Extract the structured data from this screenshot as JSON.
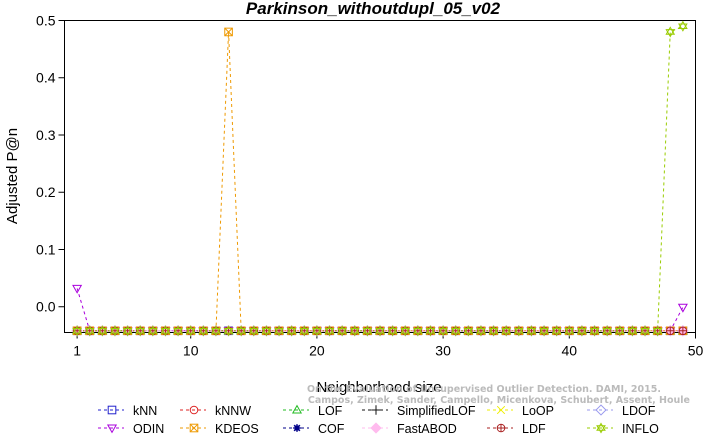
{
  "chart_data": {
    "type": "line",
    "title": "Parkinson_withoutdupl_05_v02",
    "xlabel": "Neighborhood size",
    "ylabel": "Adjusted P@n",
    "xlim": [
      0,
      50
    ],
    "ylim": [
      -0.045,
      0.5
    ],
    "xticks": [
      "1",
      "10",
      "20",
      "30",
      "40",
      "50"
    ],
    "yticks": [
      "0.0",
      "0.1",
      "0.2",
      "0.3",
      "0.4",
      "0.5"
    ],
    "x": [
      1,
      2,
      3,
      4,
      5,
      6,
      7,
      8,
      9,
      10,
      11,
      12,
      13,
      14,
      15,
      16,
      17,
      18,
      19,
      20,
      21,
      22,
      23,
      24,
      25,
      26,
      27,
      28,
      29,
      30,
      31,
      32,
      33,
      34,
      35,
      36,
      37,
      38,
      39,
      40,
      41,
      42,
      43,
      44,
      45,
      46,
      47,
      48,
      49
    ],
    "series": [
      {
        "name": "kNN",
        "color": "#2222cc",
        "marker": "square",
        "values": [
          -0.042,
          -0.042,
          -0.042,
          -0.042,
          -0.042,
          -0.042,
          -0.042,
          -0.042,
          -0.042,
          -0.042,
          -0.042,
          -0.042,
          -0.042,
          -0.042,
          -0.042,
          -0.042,
          -0.042,
          -0.042,
          -0.042,
          -0.042,
          -0.042,
          -0.042,
          -0.042,
          -0.042,
          -0.042,
          -0.042,
          -0.042,
          -0.042,
          -0.042,
          -0.042,
          -0.042,
          -0.042,
          -0.042,
          -0.042,
          -0.042,
          -0.042,
          -0.042,
          -0.042,
          -0.042,
          -0.042,
          -0.042,
          -0.042,
          -0.042,
          -0.042,
          -0.042,
          -0.042,
          -0.042,
          -0.042,
          -0.042
        ]
      },
      {
        "name": "kNNW",
        "color": "#dd2222",
        "marker": "circle",
        "values": [
          -0.042,
          -0.042,
          -0.042,
          -0.042,
          -0.042,
          -0.042,
          -0.042,
          -0.042,
          -0.042,
          -0.042,
          -0.042,
          -0.042,
          -0.042,
          -0.042,
          -0.042,
          -0.042,
          -0.042,
          -0.042,
          -0.042,
          -0.042,
          -0.042,
          -0.042,
          -0.042,
          -0.042,
          -0.042,
          -0.042,
          -0.042,
          -0.042,
          -0.042,
          -0.042,
          -0.042,
          -0.042,
          -0.042,
          -0.042,
          -0.042,
          -0.042,
          -0.042,
          -0.042,
          -0.042,
          -0.042,
          -0.042,
          -0.042,
          -0.042,
          -0.042,
          -0.042,
          -0.042,
          -0.042,
          -0.042,
          -0.042
        ]
      },
      {
        "name": "LOF",
        "color": "#22bb22",
        "marker": "triangle",
        "values": [
          -0.042,
          -0.042,
          -0.042,
          -0.042,
          -0.042,
          -0.042,
          -0.042,
          -0.042,
          -0.042,
          -0.042,
          -0.042,
          -0.042,
          -0.042,
          -0.042,
          -0.042,
          -0.042,
          -0.042,
          -0.042,
          -0.042,
          -0.042,
          -0.042,
          -0.042,
          -0.042,
          -0.042,
          -0.042,
          -0.042,
          -0.042,
          -0.042,
          -0.042,
          -0.042,
          -0.042,
          -0.042,
          -0.042,
          -0.042,
          -0.042,
          -0.042,
          -0.042,
          -0.042,
          -0.042,
          -0.042,
          -0.042,
          -0.042,
          -0.042,
          -0.042,
          -0.042,
          -0.042,
          -0.042,
          -0.042,
          -0.042
        ]
      },
      {
        "name": "SimplifiedLOF",
        "color": "#111111",
        "marker": "plus",
        "values": [
          -0.042,
          -0.042,
          -0.042,
          -0.042,
          -0.042,
          -0.042,
          -0.042,
          -0.042,
          -0.042,
          -0.042,
          -0.042,
          -0.042,
          -0.042,
          -0.042,
          -0.042,
          -0.042,
          -0.042,
          -0.042,
          -0.042,
          -0.042,
          -0.042,
          -0.042,
          -0.042,
          -0.042,
          -0.042,
          -0.042,
          -0.042,
          -0.042,
          -0.042,
          -0.042,
          -0.042,
          -0.042,
          -0.042,
          -0.042,
          -0.042,
          -0.042,
          -0.042,
          -0.042,
          -0.042,
          -0.042,
          -0.042,
          -0.042,
          -0.042,
          -0.042,
          -0.042,
          -0.042,
          -0.042,
          -0.042,
          -0.042
        ]
      },
      {
        "name": "LoOP",
        "color": "#eeee00",
        "marker": "x",
        "values": [
          -0.042,
          -0.042,
          -0.042,
          -0.042,
          -0.042,
          -0.042,
          -0.042,
          -0.042,
          -0.042,
          -0.042,
          -0.042,
          -0.042,
          -0.042,
          -0.042,
          -0.042,
          -0.042,
          -0.042,
          -0.042,
          -0.042,
          -0.042,
          -0.042,
          -0.042,
          -0.042,
          -0.042,
          -0.042,
          -0.042,
          -0.042,
          -0.042,
          -0.042,
          -0.042,
          -0.042,
          -0.042,
          -0.042,
          -0.042,
          -0.042,
          -0.042,
          -0.042,
          -0.042,
          -0.042,
          -0.042,
          -0.042,
          -0.042,
          -0.042,
          -0.042,
          -0.042,
          -0.042,
          -0.042,
          -0.042,
          -0.042
        ]
      },
      {
        "name": "LDOF",
        "color": "#9999ee",
        "marker": "diamond",
        "values": [
          -0.042,
          -0.042,
          -0.042,
          -0.042,
          -0.042,
          -0.042,
          -0.042,
          -0.042,
          -0.042,
          -0.042,
          -0.042,
          -0.042,
          -0.042,
          -0.042,
          -0.042,
          -0.042,
          -0.042,
          -0.042,
          -0.042,
          -0.042,
          -0.042,
          -0.042,
          -0.042,
          -0.042,
          -0.042,
          -0.042,
          -0.042,
          -0.042,
          -0.042,
          -0.042,
          -0.042,
          -0.042,
          -0.042,
          -0.042,
          -0.042,
          -0.042,
          -0.042,
          -0.042,
          -0.042,
          -0.042,
          -0.042,
          -0.042,
          -0.042,
          -0.042,
          -0.042,
          -0.042,
          -0.042,
          -0.042,
          -0.042
        ]
      },
      {
        "name": "ODIN",
        "color": "#aa00dd",
        "marker": "triangle-down",
        "values": [
          0.032,
          -0.042,
          -0.042,
          -0.042,
          -0.042,
          -0.042,
          -0.042,
          -0.042,
          -0.042,
          -0.042,
          -0.042,
          -0.042,
          -0.042,
          -0.042,
          -0.042,
          -0.042,
          -0.042,
          -0.042,
          -0.042,
          -0.042,
          -0.042,
          -0.042,
          -0.042,
          -0.042,
          -0.042,
          -0.042,
          -0.042,
          -0.042,
          -0.042,
          -0.042,
          -0.042,
          -0.042,
          -0.042,
          -0.042,
          -0.042,
          -0.042,
          -0.042,
          -0.042,
          -0.042,
          -0.042,
          -0.042,
          -0.042,
          -0.042,
          -0.042,
          -0.042,
          -0.042,
          -0.042,
          -0.042,
          -0.001
        ]
      },
      {
        "name": "KDEOS",
        "color": "#ee9900",
        "marker": "square-x",
        "values": [
          -0.042,
          -0.042,
          -0.042,
          -0.042,
          -0.042,
          -0.042,
          -0.042,
          -0.042,
          -0.042,
          -0.042,
          -0.042,
          -0.042,
          0.48,
          -0.042,
          -0.042,
          -0.042,
          -0.042,
          -0.042,
          -0.042,
          -0.042,
          -0.042,
          -0.042,
          -0.042,
          -0.042,
          -0.042,
          -0.042,
          -0.042,
          -0.042,
          -0.042,
          -0.042,
          -0.042,
          -0.042,
          -0.042,
          -0.042,
          -0.042,
          -0.042,
          -0.042,
          -0.042,
          -0.042,
          -0.042,
          -0.042,
          -0.042,
          -0.042,
          -0.042,
          -0.042,
          -0.042,
          -0.042,
          -0.042,
          -0.042
        ]
      },
      {
        "name": "COF",
        "color": "#000088",
        "marker": "star",
        "values": [
          -0.042,
          -0.042,
          -0.042,
          -0.042,
          -0.042,
          -0.042,
          -0.042,
          -0.042,
          -0.042,
          -0.042,
          -0.042,
          -0.042,
          -0.042,
          -0.042,
          -0.042,
          -0.042,
          -0.042,
          -0.042,
          -0.042,
          -0.042,
          -0.042,
          -0.042,
          -0.042,
          -0.042,
          -0.042,
          -0.042,
          -0.042,
          -0.042,
          -0.042,
          -0.042,
          -0.042,
          -0.042,
          -0.042,
          -0.042,
          -0.042,
          -0.042,
          -0.042,
          -0.042,
          -0.042,
          -0.042,
          -0.042,
          -0.042,
          -0.042,
          -0.042,
          -0.042,
          -0.042,
          -0.042,
          -0.042,
          -0.042
        ]
      },
      {
        "name": "FastABOD",
        "color": "#ffbbee",
        "marker": "diamond-filled",
        "values": [
          -0.042,
          -0.042,
          -0.042,
          -0.042,
          -0.042,
          -0.042,
          -0.042,
          -0.042,
          -0.042,
          -0.042,
          -0.042,
          -0.042,
          -0.042,
          -0.042,
          -0.042,
          -0.042,
          -0.042,
          -0.042,
          -0.042,
          -0.042,
          -0.042,
          -0.042,
          -0.042,
          -0.042,
          -0.042,
          -0.042,
          -0.042,
          -0.042,
          -0.042,
          -0.042,
          -0.042,
          -0.042,
          -0.042,
          -0.042,
          -0.042,
          -0.042,
          -0.042,
          -0.042,
          -0.042,
          -0.042,
          -0.042,
          -0.042,
          -0.042,
          -0.042,
          -0.042,
          -0.042,
          -0.042,
          -0.042,
          -0.042
        ]
      },
      {
        "name": "LDF",
        "color": "#aa2222",
        "marker": "circle-plus",
        "values": [
          -0.042,
          -0.042,
          -0.042,
          -0.042,
          -0.042,
          -0.042,
          -0.042,
          -0.042,
          -0.042,
          -0.042,
          -0.042,
          -0.042,
          -0.042,
          -0.042,
          -0.042,
          -0.042,
          -0.042,
          -0.042,
          -0.042,
          -0.042,
          -0.042,
          -0.042,
          -0.042,
          -0.042,
          -0.042,
          -0.042,
          -0.042,
          -0.042,
          -0.042,
          -0.042,
          -0.042,
          -0.042,
          -0.042,
          -0.042,
          -0.042,
          -0.042,
          -0.042,
          -0.042,
          -0.042,
          -0.042,
          -0.042,
          -0.042,
          -0.042,
          -0.042,
          -0.042,
          -0.042,
          -0.042,
          -0.042,
          -0.042
        ]
      },
      {
        "name": "INFLO",
        "color": "#99cc00",
        "marker": "star-of-david",
        "values": [
          -0.042,
          -0.042,
          -0.042,
          -0.042,
          -0.042,
          -0.042,
          -0.042,
          -0.042,
          -0.042,
          -0.042,
          -0.042,
          -0.042,
          -0.042,
          -0.042,
          -0.042,
          -0.042,
          -0.042,
          -0.042,
          -0.042,
          -0.042,
          -0.042,
          -0.042,
          -0.042,
          -0.042,
          -0.042,
          -0.042,
          -0.042,
          -0.042,
          -0.042,
          -0.042,
          -0.042,
          -0.042,
          -0.042,
          -0.042,
          -0.042,
          -0.042,
          -0.042,
          -0.042,
          -0.042,
          -0.042,
          -0.042,
          -0.042,
          -0.042,
          -0.042,
          -0.042,
          -0.042,
          -0.042,
          0.48,
          0.49
        ]
      }
    ],
    "legend_position": "bottom",
    "grid": false,
    "credit": [
      "Campos, Zimek, Sander, Campello, Micenkova, Schubert, Assent, Houle",
      "On the Evaluation of Unsupervised Outlier Detection. DAMI, 2015."
    ]
  }
}
